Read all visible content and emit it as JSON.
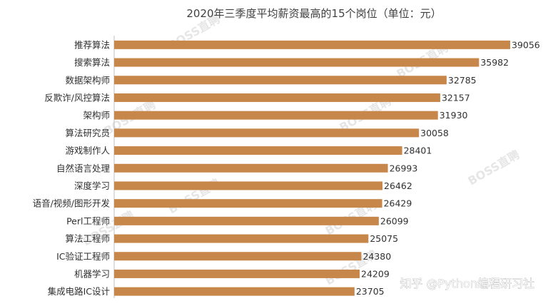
{
  "chart_data": {
    "type": "bar",
    "orientation": "horizontal",
    "title": "2020年三季度平均薪资最高的15个岗位（单位：元）",
    "categories": [
      "推荐算法",
      "搜索算法",
      "数据架构师",
      "反欺诈/风控算法",
      "架构师",
      "算法研究员",
      "游戏制作人",
      "自然语言处理",
      "深度学习",
      "语音/视频/图形开发",
      "Perl工程师",
      "算法工程师",
      "IC验证工程师",
      "机器学习",
      "集成电路IC设计"
    ],
    "values": [
      39056,
      35982,
      32785,
      32157,
      31930,
      30058,
      28401,
      26993,
      26462,
      26429,
      26099,
      25075,
      24380,
      24209,
      23705
    ],
    "xlim": [
      0,
      39056
    ],
    "bar_color": "#C8874A",
    "grid": false,
    "legend": "none"
  },
  "watermark": "BOSS直聘",
  "credit": "知乎 @Python编程研习社"
}
